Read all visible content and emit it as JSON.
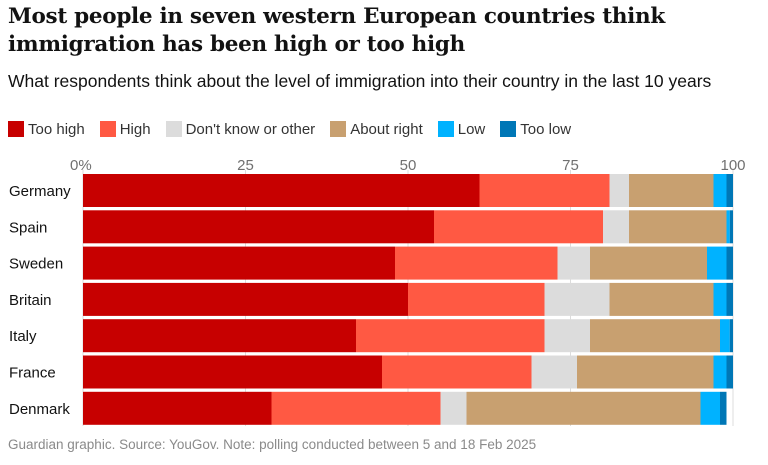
{
  "title": "Most people in seven western European countries think immigration has been high or too high",
  "subtitle": "What respondents think about the level of immigration into their country in the last 10 years",
  "footer": "Guardian graphic. Source: YouGov. Note: polling conducted between 5 and 18 Feb 2025",
  "colors": {
    "too_high": "#c70000",
    "high": "#ff5943",
    "dont_know": "#dcdcdc",
    "about_right": "#c8a070",
    "low": "#00b2ff",
    "too_low": "#0077b6"
  },
  "chart_data": {
    "type": "bar",
    "orientation": "horizontal",
    "stacked": true,
    "categories": [
      "Germany",
      "Spain",
      "Sweden",
      "Britain",
      "Italy",
      "France",
      "Denmark"
    ],
    "series": [
      {
        "name": "Too high",
        "color": "#c70000",
        "values": [
          61,
          54,
          48,
          50,
          42,
          46,
          29
        ]
      },
      {
        "name": "High",
        "color": "#ff5943",
        "values": [
          20,
          26,
          25,
          21,
          29,
          23,
          26
        ]
      },
      {
        "name": "Don't know or other",
        "color": "#dcdcdc",
        "values": [
          3,
          4,
          5,
          10,
          7,
          7,
          4
        ]
      },
      {
        "name": "About right",
        "color": "#c8a070",
        "values": [
          13,
          15,
          18,
          16,
          20,
          21,
          36
        ]
      },
      {
        "name": "Low",
        "color": "#00b2ff",
        "values": [
          2,
          0.5,
          3,
          2,
          1.5,
          2,
          3
        ]
      },
      {
        "name": "Too low",
        "color": "#0077b6",
        "values": [
          1,
          0.5,
          1,
          1,
          0.5,
          1,
          1
        ]
      }
    ],
    "xlim": [
      0,
      100
    ],
    "x_ticks": [
      0,
      25,
      50,
      75,
      100
    ],
    "x_tick_labels": [
      "0%",
      "25",
      "50",
      "75",
      "100"
    ],
    "xlabel": "",
    "ylabel": "",
    "legend_position": "top-left",
    "grid": true
  }
}
